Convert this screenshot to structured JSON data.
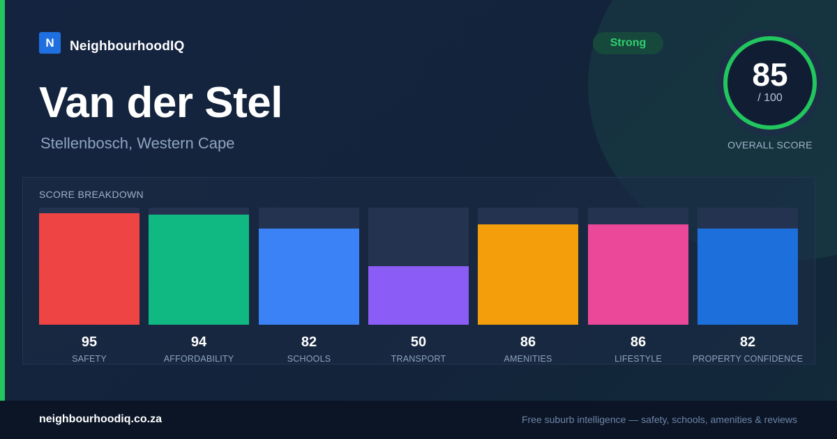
{
  "brand": {
    "logo_letter": "N",
    "name": "NeighbourhoodIQ"
  },
  "suburb": {
    "name": "Van der Stel",
    "location": "Stellenbosch, Western Cape"
  },
  "rating_badge": "Strong",
  "overall": {
    "score": 85,
    "max_label": "/ 100",
    "caption": "OVERALL SCORE",
    "ring_color": "#22c55e"
  },
  "breakdown": {
    "title": "SCORE BREAKDOWN",
    "max": 100,
    "items": [
      {
        "label": "SAFETY",
        "value": 95,
        "color": "#ef4444"
      },
      {
        "label": "AFFORDABILITY",
        "value": 94,
        "color": "#10b981"
      },
      {
        "label": "SCHOOLS",
        "value": 82,
        "color": "#3b82f6"
      },
      {
        "label": "TRANSPORT",
        "value": 50,
        "color": "#8b5cf6"
      },
      {
        "label": "AMENITIES",
        "value": 86,
        "color": "#f59e0b"
      },
      {
        "label": "LIFESTYLE",
        "value": 86,
        "color": "#ec4899"
      },
      {
        "label": "PROPERTY CONFIDENCE",
        "value": 82,
        "color": "#1d6fdb"
      }
    ]
  },
  "footer": {
    "url": "neighbourhoodiq.co.za",
    "tagline": "Free suburb intelligence — safety, schools, amenities & reviews"
  }
}
